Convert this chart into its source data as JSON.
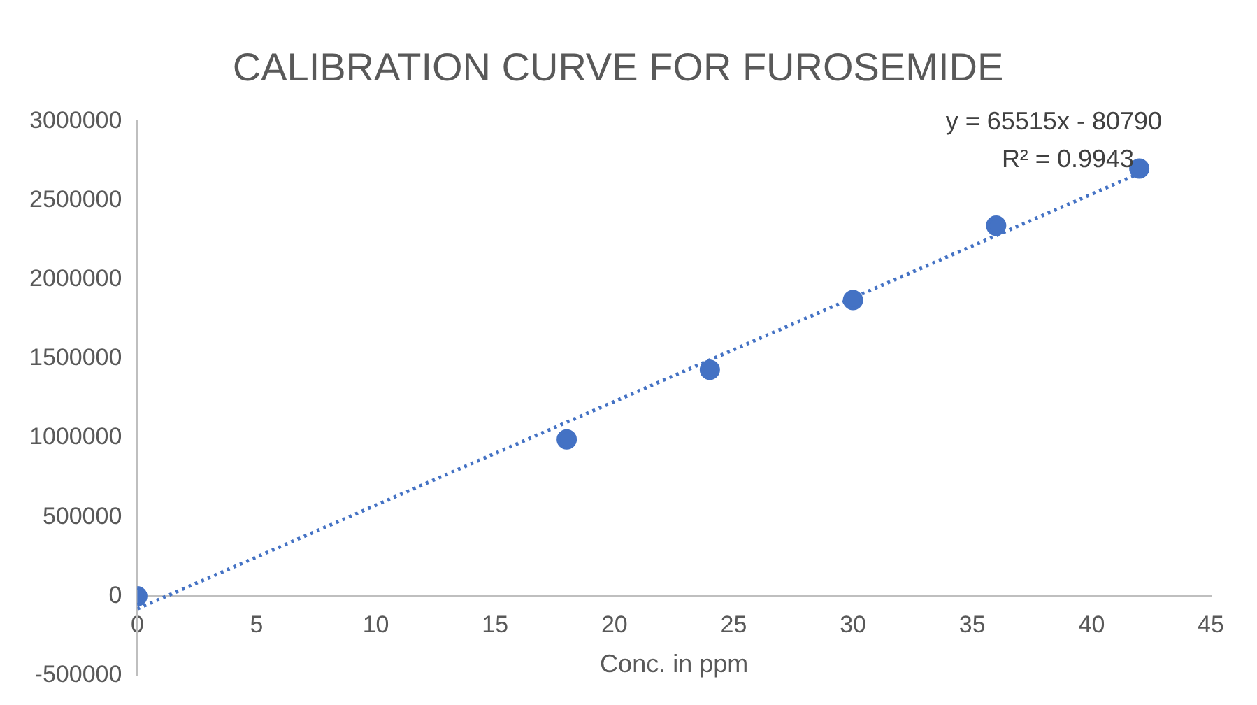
{
  "chart_data": {
    "type": "scatter",
    "title": "CALIBRATION CURVE FOR FUROSEMIDE",
    "xlabel": "Conc. in ppm",
    "xlim": [
      0,
      45
    ],
    "xticks": [
      0,
      5,
      10,
      15,
      20,
      25,
      30,
      35,
      40,
      45
    ],
    "ylim": [
      -500000,
      3000000
    ],
    "yticks": [
      -500000,
      0,
      500000,
      1000000,
      1500000,
      2000000,
      2500000,
      3000000
    ],
    "grid": false,
    "legend": false,
    "annotations": [
      "y = 65515x - 80790",
      "R² = 0.9943"
    ],
    "series": [
      {
        "color": "#4472c4",
        "marker": "circle",
        "x": [
          0,
          18,
          24,
          30,
          36,
          42
        ],
        "values": [
          0,
          990000,
          1430000,
          1870000,
          2340000,
          2700000
        ]
      },
      {
        "type": "line",
        "color": "#4472c4",
        "marker": "none",
        "line_style": "dotted",
        "x": [
          0,
          42
        ],
        "values": [
          -80000,
          2670000
        ]
      }
    ]
  }
}
